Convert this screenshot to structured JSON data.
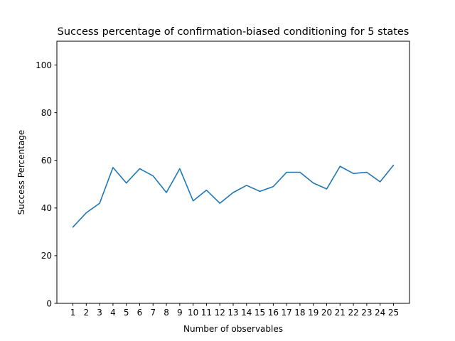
{
  "chart_data": {
    "type": "line",
    "title": "Success percentage of confirmation-biased conditioning for 5 states",
    "xlabel": "Number of observables",
    "ylabel": "Success Percentage",
    "x": [
      1,
      2,
      3,
      4,
      5,
      6,
      7,
      8,
      9,
      10,
      11,
      12,
      13,
      14,
      15,
      16,
      17,
      18,
      19,
      20,
      21,
      22,
      23,
      24,
      25
    ],
    "series": [
      {
        "values": [
          32,
          38,
          42,
          57,
          50.5,
          56.5,
          53.5,
          46.5,
          56.5,
          43,
          47.5,
          42,
          46.5,
          49.5,
          47,
          49,
          55,
          55,
          50.5,
          48,
          57.5,
          54.5,
          55,
          51,
          58
        ],
        "color": "#1f77b4"
      }
    ],
    "xlim": [
      -0.2,
      26.2
    ],
    "ylim": [
      0,
      110
    ],
    "xticks": [
      "1",
      "2",
      "3",
      "4",
      "5",
      "6",
      "7",
      "8",
      "9",
      "10",
      "11",
      "12",
      "13",
      "14",
      "15",
      "16",
      "17",
      "18",
      "19",
      "20",
      "21",
      "22",
      "23",
      "24",
      "25"
    ],
    "yticks": [
      0,
      20,
      40,
      60,
      80,
      100
    ],
    "grid": false,
    "legend": false
  }
}
